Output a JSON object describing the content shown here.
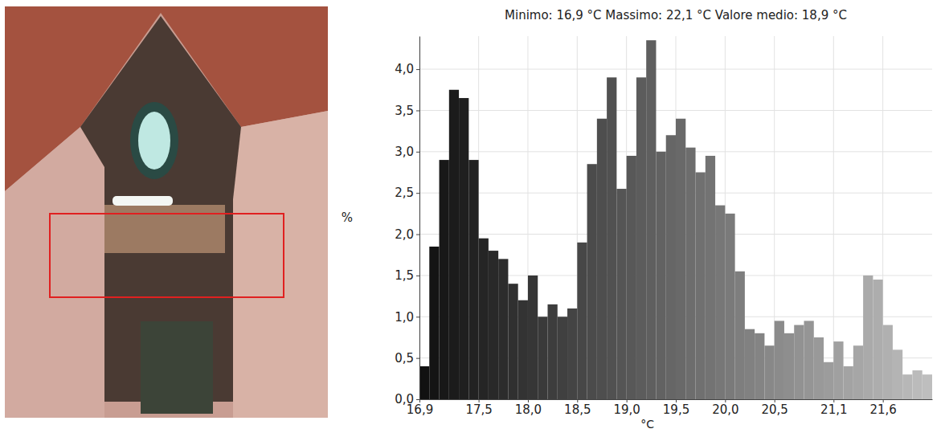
{
  "chart_data": {
    "type": "histogram",
    "title": "Minimo: 16,9 °C Massimo: 22,1 °C Valore medio: 18,9 °C",
    "xlabel": "°C",
    "ylabel": "%",
    "bins": [
      16.9,
      17,
      17.1,
      17.2,
      17.3,
      17.4,
      17.5,
      17.6,
      17.7,
      17.8,
      17.9,
      18,
      18.1,
      18.2,
      18.3,
      18.4,
      18.5,
      18.6,
      18.7,
      18.8,
      18.9,
      19,
      19.1,
      19.2,
      19.3,
      19.4,
      19.5,
      19.6,
      19.7,
      19.8,
      19.9,
      20,
      20.1,
      20.2,
      20.3,
      20.4,
      20.5,
      20.6,
      20.7,
      20.8,
      20.9,
      21,
      21.1,
      21.2,
      21.3,
      21.4,
      21.5,
      21.6,
      21.7,
      21.8,
      21.9,
      22,
      22.1
    ],
    "values": [
      0.4,
      1.85,
      2.9,
      3.75,
      3.65,
      2.9,
      1.95,
      1.8,
      1.7,
      1.4,
      1.2,
      1.5,
      1.0,
      1.15,
      1.0,
      1.1,
      1.9,
      2.85,
      3.4,
      3.9,
      2.55,
      2.95,
      3.9,
      4.35,
      3.0,
      3.2,
      3.4,
      3.05,
      2.75,
      2.95,
      2.35,
      2.25,
      1.55,
      0.85,
      0.8,
      0.65,
      0.95,
      0.8,
      0.9,
      0.95,
      0.75,
      0.45,
      0.7,
      0.4,
      0.65,
      1.5,
      1.45,
      0.9,
      0.6,
      0.3,
      0.35,
      0.3
    ],
    "colors": [
      "#111111",
      "#141414",
      "#181818",
      "#1b1b1b",
      "#1f1f1f",
      "#222222",
      "#252525",
      "#292929",
      "#2c2c2c",
      "#303030",
      "#333333",
      "#363636",
      "#3a3a3a",
      "#3d3d3d",
      "#404040",
      "#444444",
      "#474747",
      "#4b4b4b",
      "#4e4e4e",
      "#515151",
      "#555555",
      "#585858",
      "#5c5c5c",
      "#5f5f5f",
      "#626262",
      "#666666",
      "#696969",
      "#6d6d6d",
      "#707070",
      "#737373",
      "#777777",
      "#7a7a7a",
      "#7e7e7e",
      "#818181",
      "#848484",
      "#888888",
      "#8b8b8b",
      "#8e8e8e",
      "#929292",
      "#959595",
      "#999999",
      "#9c9c9c",
      "#a0a0a0",
      "#a3a3a3",
      "#a6a6a6",
      "#aaaaaa",
      "#adadad",
      "#b0b0b0",
      "#b4b4b4",
      "#b7b7b7",
      "#bbbbbb",
      "#bebebe"
    ],
    "xlim": [
      16.9,
      22.1
    ],
    "xticks": [
      {
        "value": 16.9,
        "label": "16,9"
      },
      {
        "value": 17.5,
        "label": "17,5"
      },
      {
        "value": 18,
        "label": "18,0"
      },
      {
        "value": 18.5,
        "label": "18,5"
      },
      {
        "value": 19,
        "label": "19,0"
      },
      {
        "value": 19.5,
        "label": "19,5"
      },
      {
        "value": 20,
        "label": "20,0"
      },
      {
        "value": 20.5,
        "label": "20,5"
      },
      {
        "value": 21.1,
        "label": "21,1"
      },
      {
        "value": 21.6,
        "label": "21,6"
      }
    ],
    "ylim": [
      0,
      4.4
    ],
    "yticks": [
      {
        "value": 0,
        "label": "0,0"
      },
      {
        "value": 0.5,
        "label": "0,5"
      },
      {
        "value": 1,
        "label": "1,0"
      },
      {
        "value": 1.5,
        "label": "1,5"
      },
      {
        "value": 2,
        "label": "2,0"
      },
      {
        "value": 2.5,
        "label": "2,5"
      },
      {
        "value": 3,
        "label": "3,0"
      },
      {
        "value": 3.5,
        "label": "3,5"
      },
      {
        "value": 4,
        "label": "4,0"
      }
    ],
    "grid": true
  }
}
